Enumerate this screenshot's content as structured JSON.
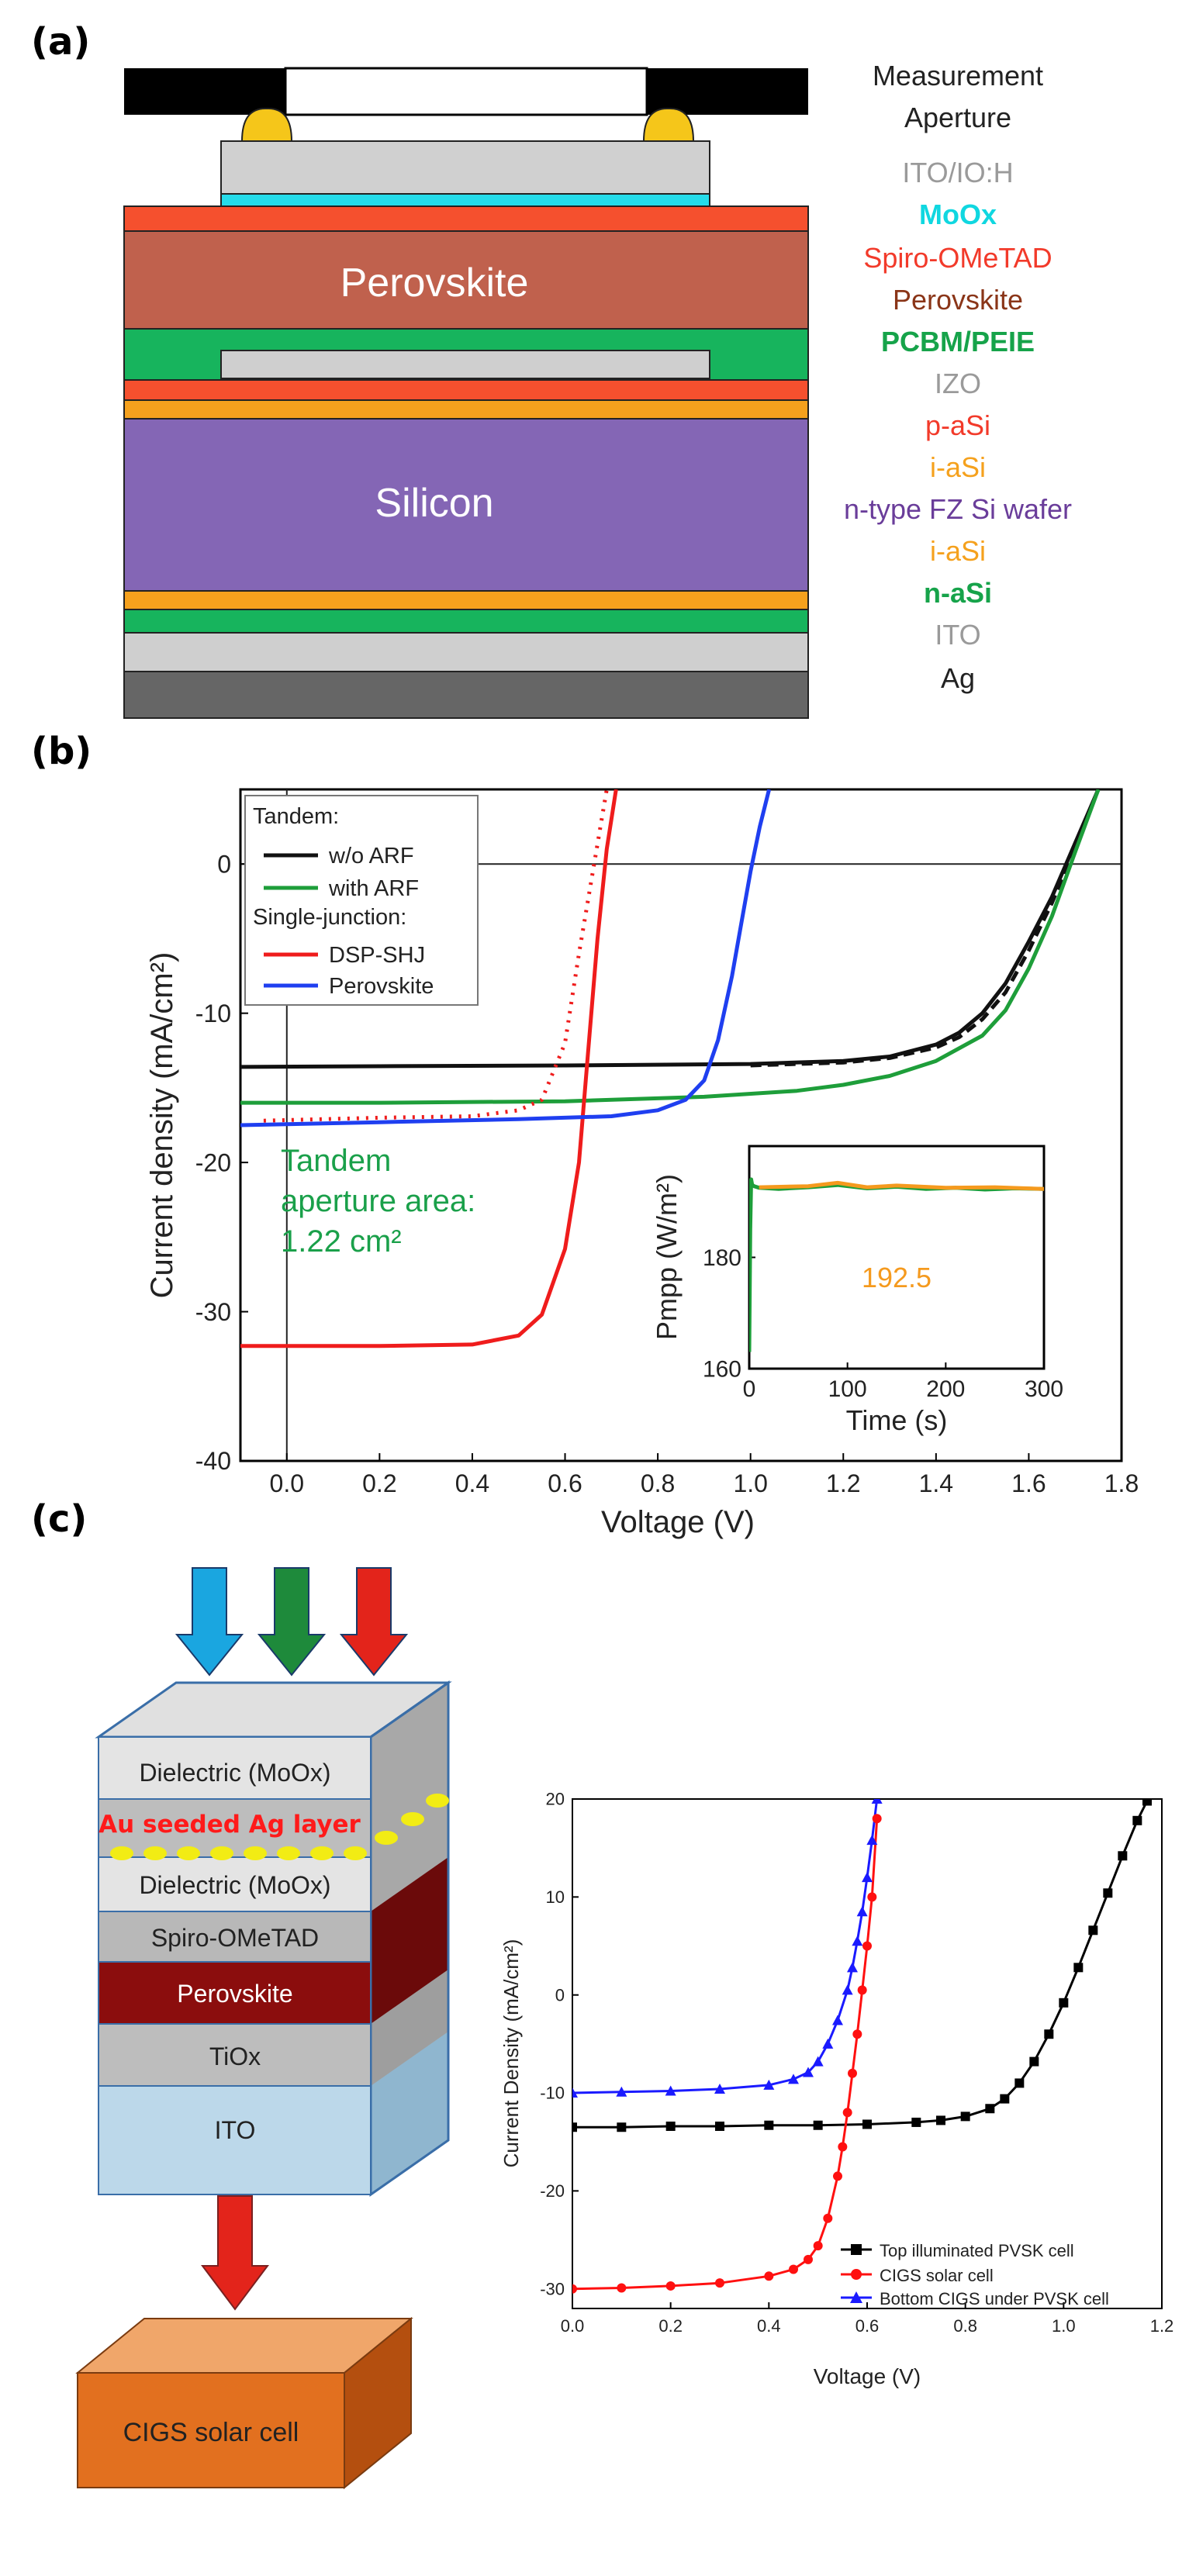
{
  "panel_a": {
    "tag": "(a)",
    "stack_texts": {
      "perovskite": "Perovskite",
      "silicon": "Silicon"
    },
    "legend": [
      {
        "text": "Measurement",
        "color": "#222222"
      },
      {
        "text": "Aperture",
        "color": "#222222"
      },
      {
        "text": "ITO/IO:H",
        "color": "#9a9a9a"
      },
      {
        "text": "MoOx",
        "color": "#10d7e0"
      },
      {
        "text": "Spiro-OMeTAD",
        "color": "#f23a2a"
      },
      {
        "text": "Perovskite",
        "color": "#8a3518"
      },
      {
        "text": "PCBM/PEIE",
        "color": "#16a34a"
      },
      {
        "text": "IZO",
        "color": "#9a9a9a"
      },
      {
        "text": "p-aSi",
        "color": "#f23a2a"
      },
      {
        "text": "i-aSi",
        "color": "#f5a11d"
      },
      {
        "text": "n-type FZ Si wafer",
        "color": "#6a3d9a"
      },
      {
        "text": "i-aSi",
        "color": "#f5a11d"
      },
      {
        "text": "n-aSi",
        "color": "#16a34a"
      },
      {
        "text": "ITO",
        "color": "#9a9a9a"
      },
      {
        "text": "Ag",
        "color": "#222222"
      }
    ]
  },
  "panel_b": {
    "tag": "(b)",
    "annotation_lines": [
      "Tandem",
      "aperture area:",
      "1.22 cm²"
    ],
    "inset_value_label": "192.5"
  },
  "panel_c": {
    "tag": "(c)",
    "stack_labels": {
      "dielectric_top": "Dielectric (MoOx)",
      "au_layer": "Au seeded Ag layer",
      "dielectric_bottom": "Dielectric (MoOx)",
      "spiro": "Spiro-OMeTAD",
      "perovskite": "Perovskite",
      "tiox": "TiOx",
      "ito": "ITO",
      "cigs": "CIGS solar cell"
    },
    "arrow_colors": [
      "#1aa6e0",
      "#1e8a3b",
      "#e3241b"
    ]
  },
  "chart_data": [
    {
      "type": "line",
      "panel": "b",
      "title": "",
      "xlabel": "Voltage (V)",
      "ylabel": "Current density (mA/cm²)",
      "xlim": [
        -0.1,
        1.8
      ],
      "ylim": [
        -40,
        5
      ],
      "xticks": [
        0.0,
        0.2,
        0.4,
        0.6,
        0.8,
        1.0,
        1.2,
        1.4,
        1.6,
        1.8
      ],
      "xtick_labels": [
        "0.0",
        "0.2",
        "0.4",
        "0.6",
        "0.8",
        "1.0",
        "1.2",
        "1.4",
        "1.6",
        "1.8"
      ],
      "yticks": [
        -40,
        -30,
        -20,
        -10,
        0
      ],
      "ytick_labels": [
        "-40",
        "-30",
        "-20",
        "-10",
        "0"
      ],
      "legend_title_1": "Tandem:",
      "legend_title_2": "Single-junction:",
      "series": [
        {
          "name": "w/o ARF",
          "color": "#111111",
          "group": "Tandem",
          "x": [
            -0.1,
            0.2,
            0.6,
            1.0,
            1.2,
            1.3,
            1.4,
            1.45,
            1.5,
            1.55,
            1.6,
            1.65,
            1.7,
            1.75
          ],
          "y": [
            -13.6,
            -13.55,
            -13.5,
            -13.4,
            -13.2,
            -12.9,
            -12.1,
            -11.3,
            -10.0,
            -8.0,
            -5.2,
            -2.2,
            1.4,
            5.0
          ]
        },
        {
          "name": "w/o ARF (dashed)",
          "color": "#111111",
          "dash": "14 8",
          "legend": false,
          "x": [
            1.0,
            1.2,
            1.3,
            1.4,
            1.45,
            1.5,
            1.55,
            1.6,
            1.65,
            1.7,
            1.75
          ],
          "y": [
            -13.5,
            -13.3,
            -13.0,
            -12.3,
            -11.6,
            -10.4,
            -8.6,
            -5.8,
            -2.6,
            1.1,
            5.0
          ]
        },
        {
          "name": "with ARF",
          "color": "#1e9e3a",
          "group": "Tandem",
          "x": [
            -0.1,
            0.2,
            0.6,
            0.9,
            1.1,
            1.2,
            1.3,
            1.4,
            1.5,
            1.55,
            1.6,
            1.65,
            1.7,
            1.75
          ],
          "y": [
            -16.0,
            -16.0,
            -15.9,
            -15.6,
            -15.2,
            -14.8,
            -14.2,
            -13.2,
            -11.5,
            -9.8,
            -7.0,
            -3.5,
            0.8,
            5.0
          ]
        },
        {
          "name": "DSP-SHJ",
          "color": "#ef1c1c",
          "group": "Single-junction",
          "x": [
            -0.1,
            0.2,
            0.4,
            0.5,
            0.55,
            0.6,
            0.63,
            0.65,
            0.67,
            0.69,
            0.71
          ],
          "y": [
            -32.3,
            -32.3,
            -32.2,
            -31.6,
            -30.2,
            -25.8,
            -20.0,
            -12.5,
            -5.0,
            1.0,
            5.0
          ]
        },
        {
          "name": "DSP-SHJ (dotted)",
          "color": "#ef1c1c",
          "dash": "3 9",
          "legend": false,
          "x": [
            -0.05,
            0.2,
            0.4,
            0.5,
            0.55,
            0.6,
            0.63,
            0.66,
            0.69
          ],
          "y": [
            -17.2,
            -17.0,
            -16.9,
            -16.5,
            -15.8,
            -12.0,
            -6.0,
            -0.5,
            5.0
          ]
        },
        {
          "name": "Perovskite",
          "color": "#1f3ff0",
          "group": "Single-junction",
          "x": [
            -0.1,
            0.2,
            0.5,
            0.7,
            0.8,
            0.86,
            0.9,
            0.93,
            0.96,
            0.98,
            1.0,
            1.02,
            1.04
          ],
          "y": [
            -17.5,
            -17.3,
            -17.1,
            -16.9,
            -16.5,
            -15.8,
            -14.5,
            -11.8,
            -7.5,
            -4.0,
            -0.5,
            2.5,
            5.0
          ]
        }
      ],
      "annotation": "Tandem aperture area: 1.22 cm²",
      "inset": {
        "type": "line",
        "xlabel": "Time (s)",
        "ylabel": "Pmpp (W/m²)",
        "xlim": [
          0,
          300
        ],
        "ylim": [
          160,
          200
        ],
        "xticks": [
          0,
          100,
          200,
          300
        ],
        "xtick_labels": [
          "0",
          "100",
          "200",
          "300"
        ],
        "yticks": [
          160,
          180
        ],
        "ytick_labels": [
          "160",
          "180"
        ],
        "label": "192.5",
        "series": [
          {
            "name": "Pmpp green",
            "color": "#1e9e3a",
            "x": [
              0,
              1,
              2,
              3,
              5,
              10,
              30,
              60,
              90,
              120,
              150,
              180,
              210,
              240,
              270,
              300
            ],
            "y": [
              163,
              185,
              194,
              193,
              192.8,
              192.5,
              192.3,
              192.6,
              193.0,
              192.4,
              192.7,
              192.3,
              192.5,
              192.2,
              192.4,
              192.3
            ]
          },
          {
            "name": "Pmpp orange",
            "color": "#f59a1e",
            "x": [
              10,
              60,
              90,
              120,
              150,
              200,
              250,
              300
            ],
            "y": [
              192.6,
              192.8,
              193.4,
              192.6,
              192.9,
              192.5,
              192.6,
              192.3
            ]
          }
        ]
      }
    },
    {
      "type": "line",
      "panel": "c",
      "title": "",
      "xlabel": "Voltage (V)",
      "ylabel": "Current Density (mA/cm²)",
      "xlim": [
        0,
        1.2
      ],
      "ylim": [
        -32,
        20
      ],
      "xticks": [
        0.0,
        0.2,
        0.4,
        0.6,
        0.8,
        1.0,
        1.2
      ],
      "xtick_labels": [
        "0.0",
        "0.2",
        "0.4",
        "0.6",
        "0.8",
        "1.0",
        "1.2"
      ],
      "yticks": [
        -30,
        -20,
        -10,
        0,
        10,
        20
      ],
      "ytick_labels": [
        "-30",
        "-20",
        "-10",
        "0",
        "10",
        "20"
      ],
      "series": [
        {
          "name": "Top illuminated PVSK cell",
          "color": "#000000",
          "marker": "square",
          "x": [
            0.0,
            0.1,
            0.2,
            0.3,
            0.4,
            0.5,
            0.6,
            0.7,
            0.75,
            0.8,
            0.85,
            0.88,
            0.91,
            0.94,
            0.97,
            1.0,
            1.03,
            1.06,
            1.09,
            1.12,
            1.15,
            1.17
          ],
          "y": [
            -13.5,
            -13.5,
            -13.4,
            -13.4,
            -13.3,
            -13.3,
            -13.2,
            -13.0,
            -12.8,
            -12.4,
            -11.6,
            -10.6,
            -9.0,
            -6.8,
            -4.0,
            -0.8,
            2.8,
            6.6,
            10.4,
            14.2,
            17.8,
            19.8
          ]
        },
        {
          "name": "CIGS solar cell",
          "color": "#ff1010",
          "marker": "circle",
          "x": [
            0.0,
            0.1,
            0.2,
            0.3,
            0.4,
            0.45,
            0.48,
            0.5,
            0.52,
            0.54,
            0.55,
            0.56,
            0.57,
            0.58,
            0.59,
            0.6,
            0.61,
            0.62
          ],
          "y": [
            -30.0,
            -29.9,
            -29.7,
            -29.4,
            -28.7,
            -28.0,
            -27.0,
            -25.6,
            -22.8,
            -18.5,
            -15.5,
            -12.0,
            -8.0,
            -4.0,
            0.5,
            5.0,
            10.0,
            18.0
          ]
        },
        {
          "name": "Bottom CIGS under PVSK cell",
          "color": "#1a1aff",
          "marker": "triangle",
          "x": [
            0.0,
            0.1,
            0.2,
            0.3,
            0.4,
            0.45,
            0.48,
            0.5,
            0.52,
            0.54,
            0.56,
            0.57,
            0.58,
            0.59,
            0.6,
            0.61,
            0.62
          ],
          "y": [
            -10.0,
            -9.9,
            -9.8,
            -9.6,
            -9.2,
            -8.6,
            -7.9,
            -6.8,
            -5.0,
            -2.6,
            0.5,
            2.8,
            5.5,
            8.5,
            12.0,
            15.8,
            20.0
          ]
        }
      ]
    }
  ]
}
